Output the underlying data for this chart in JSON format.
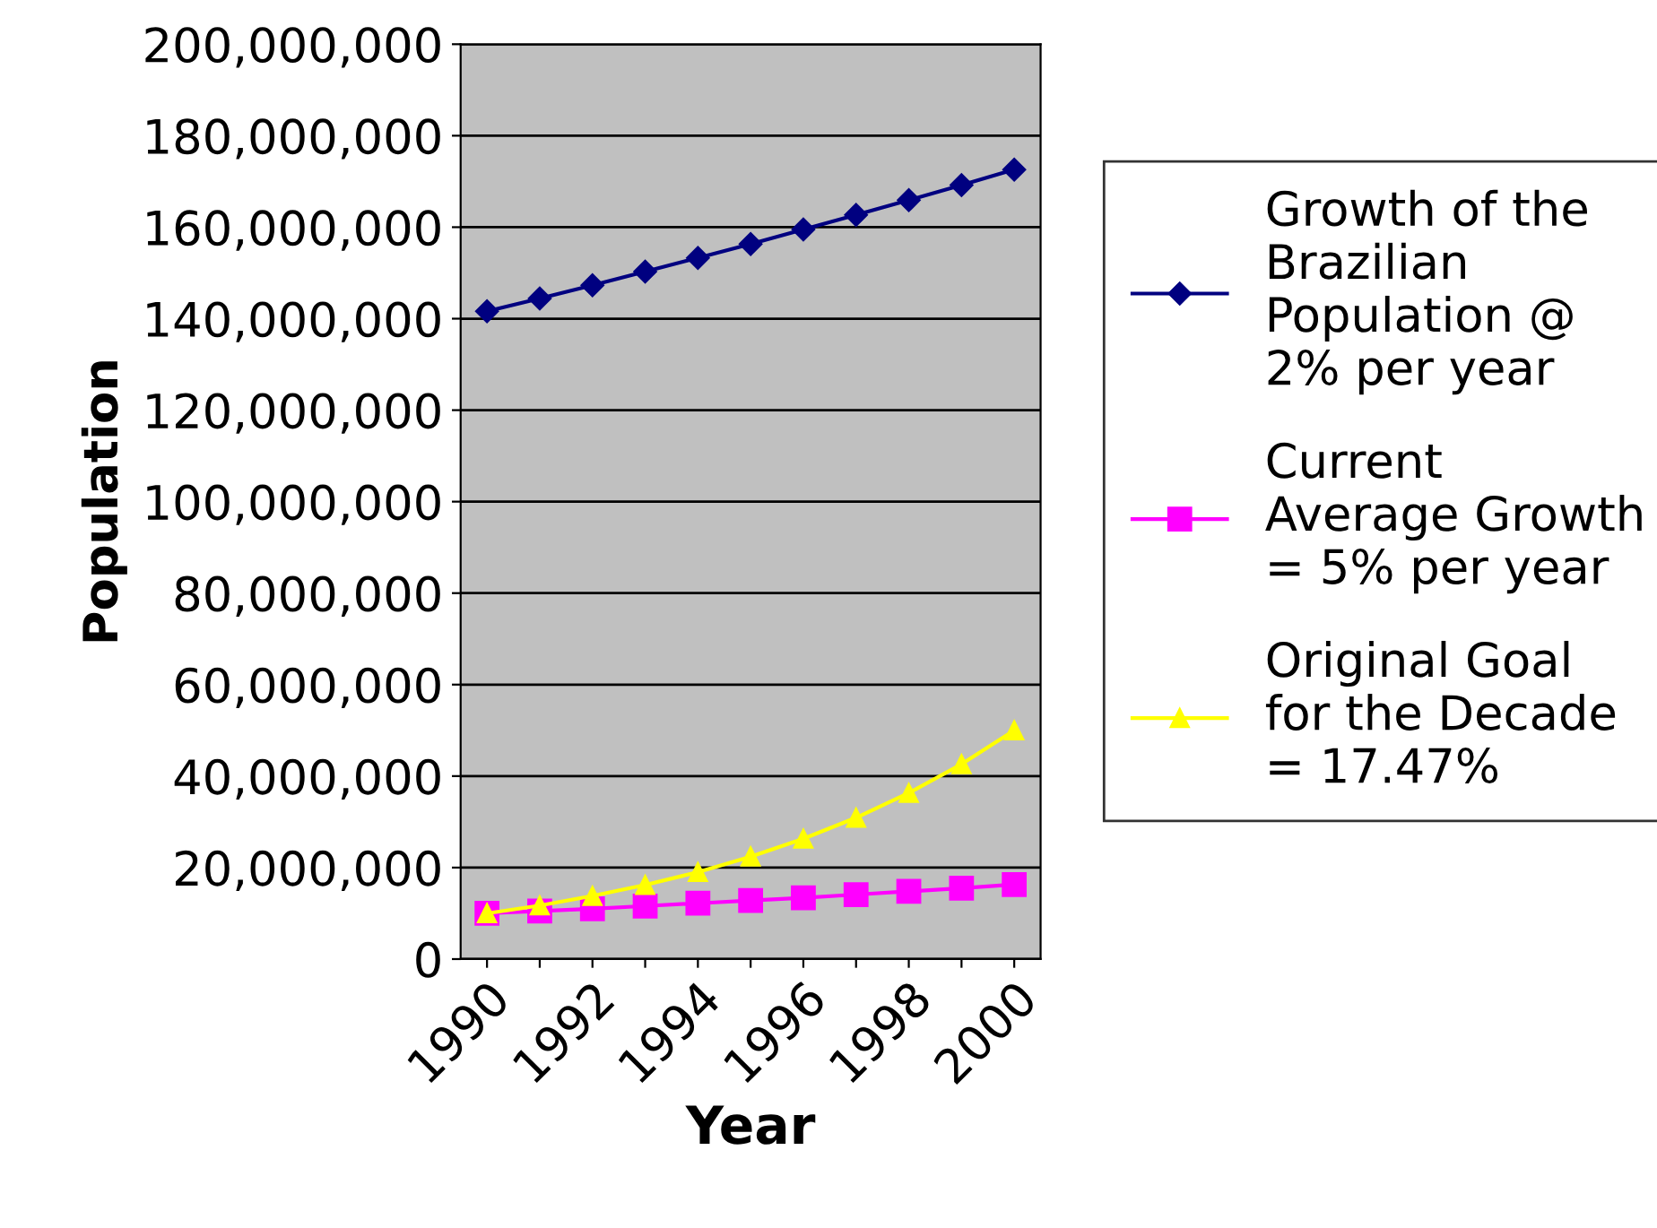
{
  "chart_data": {
    "type": "line",
    "xlabel": "Year",
    "ylabel": "Population",
    "categories": [
      "1990",
      null,
      "1992",
      null,
      "1994",
      null,
      "1996",
      null,
      "1998",
      null,
      "2000"
    ],
    "series": [
      {
        "name": "Growth of the Brazilian Population @ 2% per year",
        "color": "#000080",
        "marker": "diamond",
        "values": [
          141600000,
          144400000,
          147300000,
          150300000,
          153300000,
          156300000,
          159500000,
          162700000,
          165900000,
          169200000,
          172600000
        ]
      },
      {
        "name": "Current Average Growth = 5% per year",
        "color": "#ff00ff",
        "marker": "square",
        "values": [
          10000000,
          10500000,
          11000000,
          11600000,
          12200000,
          12800000,
          13400000,
          14100000,
          14800000,
          15500000,
          16300000
        ]
      },
      {
        "name": "Original Goal for the Decade = 17.47%",
        "color": "#ffff00",
        "marker": "triangle",
        "values": [
          10000000,
          11700000,
          13800000,
          16200000,
          19000000,
          22400000,
          26300000,
          30900000,
          36300000,
          42600000,
          50000000
        ]
      }
    ],
    "ylim": [
      0,
      200000000
    ],
    "yticks": [
      {
        "value": 0,
        "label": "0"
      },
      {
        "value": 20000000,
        "label": "20,000,000"
      },
      {
        "value": 40000000,
        "label": "40,000,000"
      },
      {
        "value": 60000000,
        "label": "60,000,000"
      },
      {
        "value": 80000000,
        "label": "80,000,000"
      },
      {
        "value": 100000000,
        "label": "100,000,000"
      },
      {
        "value": 120000000,
        "label": "120,000,000"
      },
      {
        "value": 140000000,
        "label": "140,000,000"
      },
      {
        "value": 160000000,
        "label": "160,000,000"
      },
      {
        "value": 180000000,
        "label": "180,000,000"
      },
      {
        "value": 200000000,
        "label": "200,000,000"
      }
    ],
    "grid": "y",
    "legend": "right",
    "line_style": "solid"
  }
}
